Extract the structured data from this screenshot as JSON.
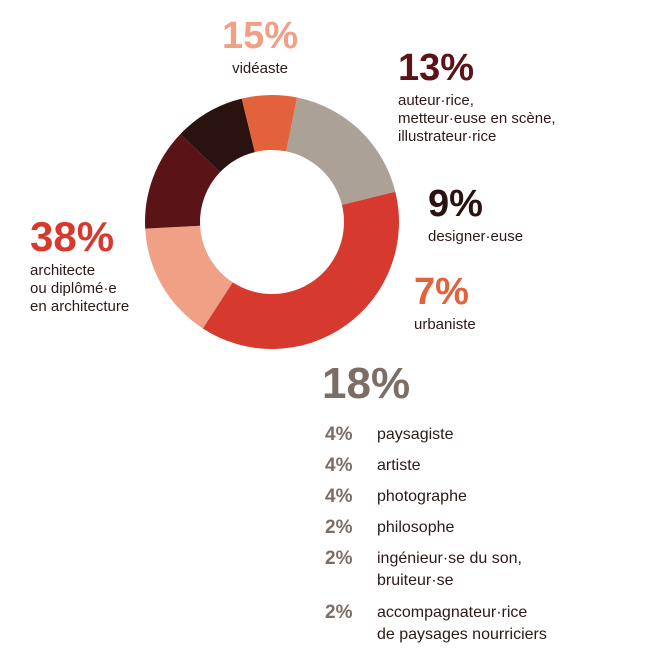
{
  "chart_data": {
    "type": "pie",
    "style": "donut",
    "slices": [
      {
        "percent": "15%",
        "value": 15,
        "label": "vidéaste",
        "color": "#f0a084"
      },
      {
        "percent": "13%",
        "value": 13,
        "label": "auteur·rice,\nmetteur·euse en scène,\nillustrateur·rice",
        "color": "#5a1418"
      },
      {
        "percent": "9%",
        "value": 9,
        "label": "designer·euse",
        "color": "#2a1210"
      },
      {
        "percent": "7%",
        "value": 7,
        "label": "urbaniste",
        "color": "#e2623c"
      },
      {
        "percent": "18%",
        "value": 18,
        "label": "",
        "color": "#aca197"
      },
      {
        "percent": "38%",
        "value": 38,
        "label": "architecte\nou diplômé·e\nen architecture",
        "color": "#d63a2e"
      }
    ],
    "other_breakdown": [
      {
        "percent": "4%",
        "label": "paysagiste"
      },
      {
        "percent": "4%",
        "label": "artiste"
      },
      {
        "percent": "4%",
        "label": "photographe"
      },
      {
        "percent": "2%",
        "label": "philosophe"
      },
      {
        "percent": "2%",
        "label": "ingénieur·se du son,\nbruiteur·se"
      },
      {
        "percent": "2%",
        "label": "accompagnateur·rice\nde paysages nourriciers"
      }
    ]
  }
}
